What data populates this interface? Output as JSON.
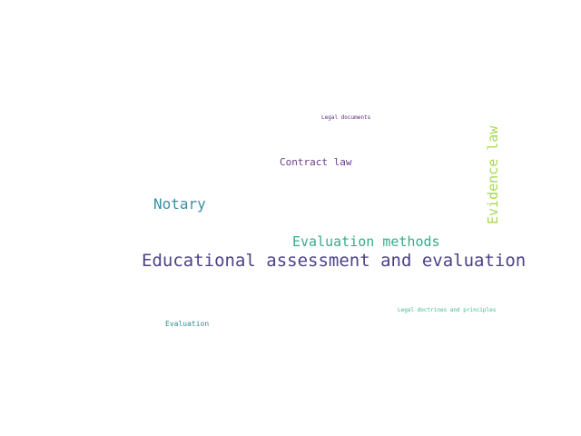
{
  "word_cloud": {
    "words": [
      {
        "text": "Educational assessment and evaluation",
        "color": "#4b4389",
        "size_rank": 1
      },
      {
        "text": "Evaluation methods",
        "color": "#38ab8a",
        "size_rank": 2
      },
      {
        "text": "Evidence law",
        "color": "#a5da4d",
        "size_rank": 3,
        "orientation": "vertical"
      },
      {
        "text": "Notary",
        "color": "#3b8fa3",
        "size_rank": 4
      },
      {
        "text": "Contract law",
        "color": "#6a3d8c",
        "size_rank": 5
      },
      {
        "text": "Evaluation",
        "color": "#2b8a8f",
        "size_rank": 6
      },
      {
        "text": "Legal doctrines and principles",
        "color": "#3db88a",
        "size_rank": 7
      },
      {
        "text": "Legal documents",
        "color": "#5a2d7a",
        "size_rank": 8
      }
    ]
  }
}
